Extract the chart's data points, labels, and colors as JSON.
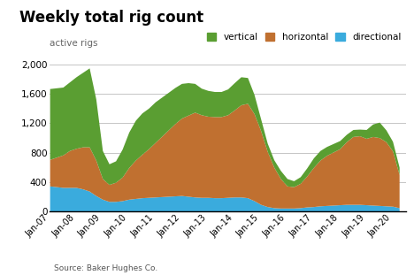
{
  "title": "Weekly total rig count",
  "active_rigs_label": "active rigs",
  "source": "Source: Baker Hughes Co.",
  "colors": {
    "vertical": "#5a9e32",
    "horizontal": "#c07030",
    "directional": "#3aabdd"
  },
  "years": [
    2007,
    2007.25,
    2007.5,
    2007.75,
    2008,
    2008.25,
    2008.5,
    2008.75,
    2009,
    2009.25,
    2009.5,
    2009.75,
    2010,
    2010.25,
    2010.5,
    2010.75,
    2011,
    2011.25,
    2011.5,
    2011.75,
    2012,
    2012.25,
    2012.5,
    2012.75,
    2013,
    2013.25,
    2013.5,
    2013.75,
    2014,
    2014.25,
    2014.5,
    2014.75,
    2015,
    2015.25,
    2015.5,
    2015.75,
    2016,
    2016.25,
    2016.5,
    2016.75,
    2017,
    2017.25,
    2017.5,
    2017.75,
    2018,
    2018.25,
    2018.5,
    2018.75,
    2019,
    2019.25,
    2019.5,
    2019.75,
    2020,
    2020.25
  ],
  "directional": [
    350,
    340,
    330,
    330,
    330,
    310,
    280,
    220,
    170,
    140,
    140,
    150,
    170,
    180,
    190,
    195,
    200,
    205,
    210,
    215,
    220,
    210,
    200,
    195,
    195,
    190,
    190,
    195,
    200,
    200,
    190,
    150,
    100,
    70,
    55,
    50,
    50,
    50,
    55,
    65,
    70,
    80,
    85,
    90,
    95,
    100,
    100,
    100,
    95,
    90,
    85,
    80,
    75,
    55
  ],
  "horizontal": [
    360,
    400,
    440,
    500,
    530,
    570,
    600,
    480,
    280,
    230,
    260,
    320,
    430,
    520,
    590,
    660,
    740,
    820,
    900,
    980,
    1050,
    1100,
    1150,
    1120,
    1100,
    1100,
    1100,
    1120,
    1180,
    1250,
    1280,
    1180,
    1000,
    750,
    550,
    400,
    300,
    290,
    330,
    420,
    530,
    620,
    680,
    720,
    760,
    850,
    920,
    930,
    900,
    930,
    920,
    870,
    750,
    450
  ],
  "vertical": [
    960,
    940,
    920,
    930,
    970,
    1010,
    1070,
    830,
    380,
    280,
    290,
    380,
    480,
    540,
    560,
    550,
    550,
    530,
    510,
    490,
    470,
    440,
    390,
    360,
    350,
    340,
    340,
    350,
    370,
    380,
    350,
    260,
    160,
    110,
    100,
    110,
    100,
    80,
    90,
    110,
    130,
    130,
    120,
    115,
    110,
    100,
    95,
    90,
    120,
    170,
    210,
    160,
    130,
    100
  ],
  "xlim": [
    2007,
    2020.5
  ],
  "ylim": [
    0,
    2200
  ],
  "yticks": [
    0,
    400,
    800,
    1200,
    1600,
    2000
  ],
  "xticks": [
    2007,
    2008,
    2009,
    2010,
    2011,
    2012,
    2013,
    2014,
    2015,
    2016,
    2017,
    2018,
    2019,
    2020
  ],
  "xtick_labels": [
    "Jan-07",
    "Jan-08",
    "Jan-09",
    "Jan-10",
    "Jan-11",
    "Jan-12",
    "Jan-13",
    "Jan-14",
    "Jan-15",
    "Jan-16",
    "Jan-17",
    "Jan-18",
    "Jan-19",
    "Jan-20"
  ]
}
